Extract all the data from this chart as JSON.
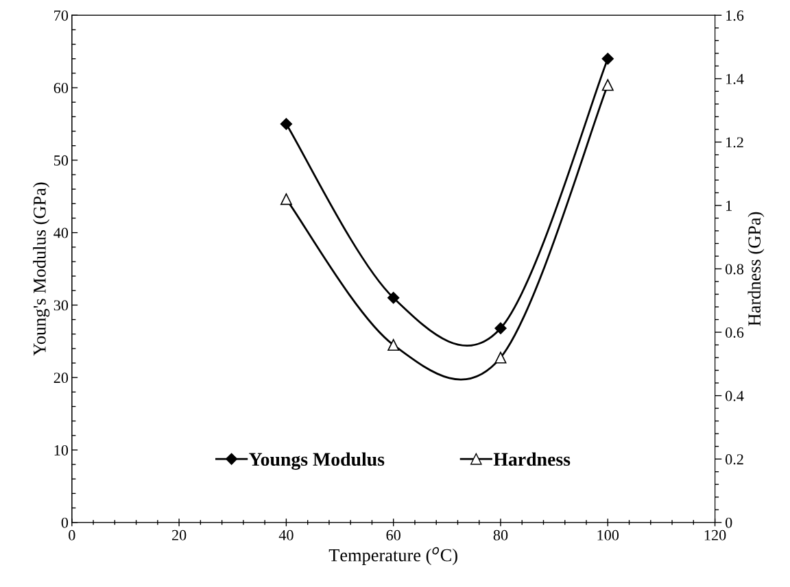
{
  "chart_data": {
    "type": "line",
    "xlabel": "Temperature ($^{o}$C)",
    "ylabel": "Young's Modulus (GPa)",
    "y2label": "Hardness (GPa)",
    "x": [
      40,
      60,
      80,
      100
    ],
    "series": [
      {
        "name": "Youngs Modulus",
        "color": "#000000",
        "values": [
          55,
          31,
          26.8,
          64
        ],
        "marker": "diamond"
      },
      {
        "name": "Hardness",
        "color": "#000000",
        "values": [
          1.02,
          0.56,
          0.52,
          1.38
        ],
        "marker": "triangle",
        "axis": "y2"
      }
    ],
    "xlim": [
      0,
      120
    ],
    "xticks": [
      0,
      20,
      40,
      60,
      80,
      100,
      120
    ],
    "ylim": [
      0,
      70
    ],
    "yticks": [
      0,
      10,
      20,
      30,
      40,
      50,
      60,
      70
    ],
    "y2lim": [
      0,
      1.6
    ],
    "y2ticks": [
      0,
      0.2,
      0.4,
      0.6,
      0.8,
      1,
      1.2,
      1.4,
      1.6
    ],
    "grid": false,
    "legend": "bottom",
    "line_style": "solid"
  }
}
